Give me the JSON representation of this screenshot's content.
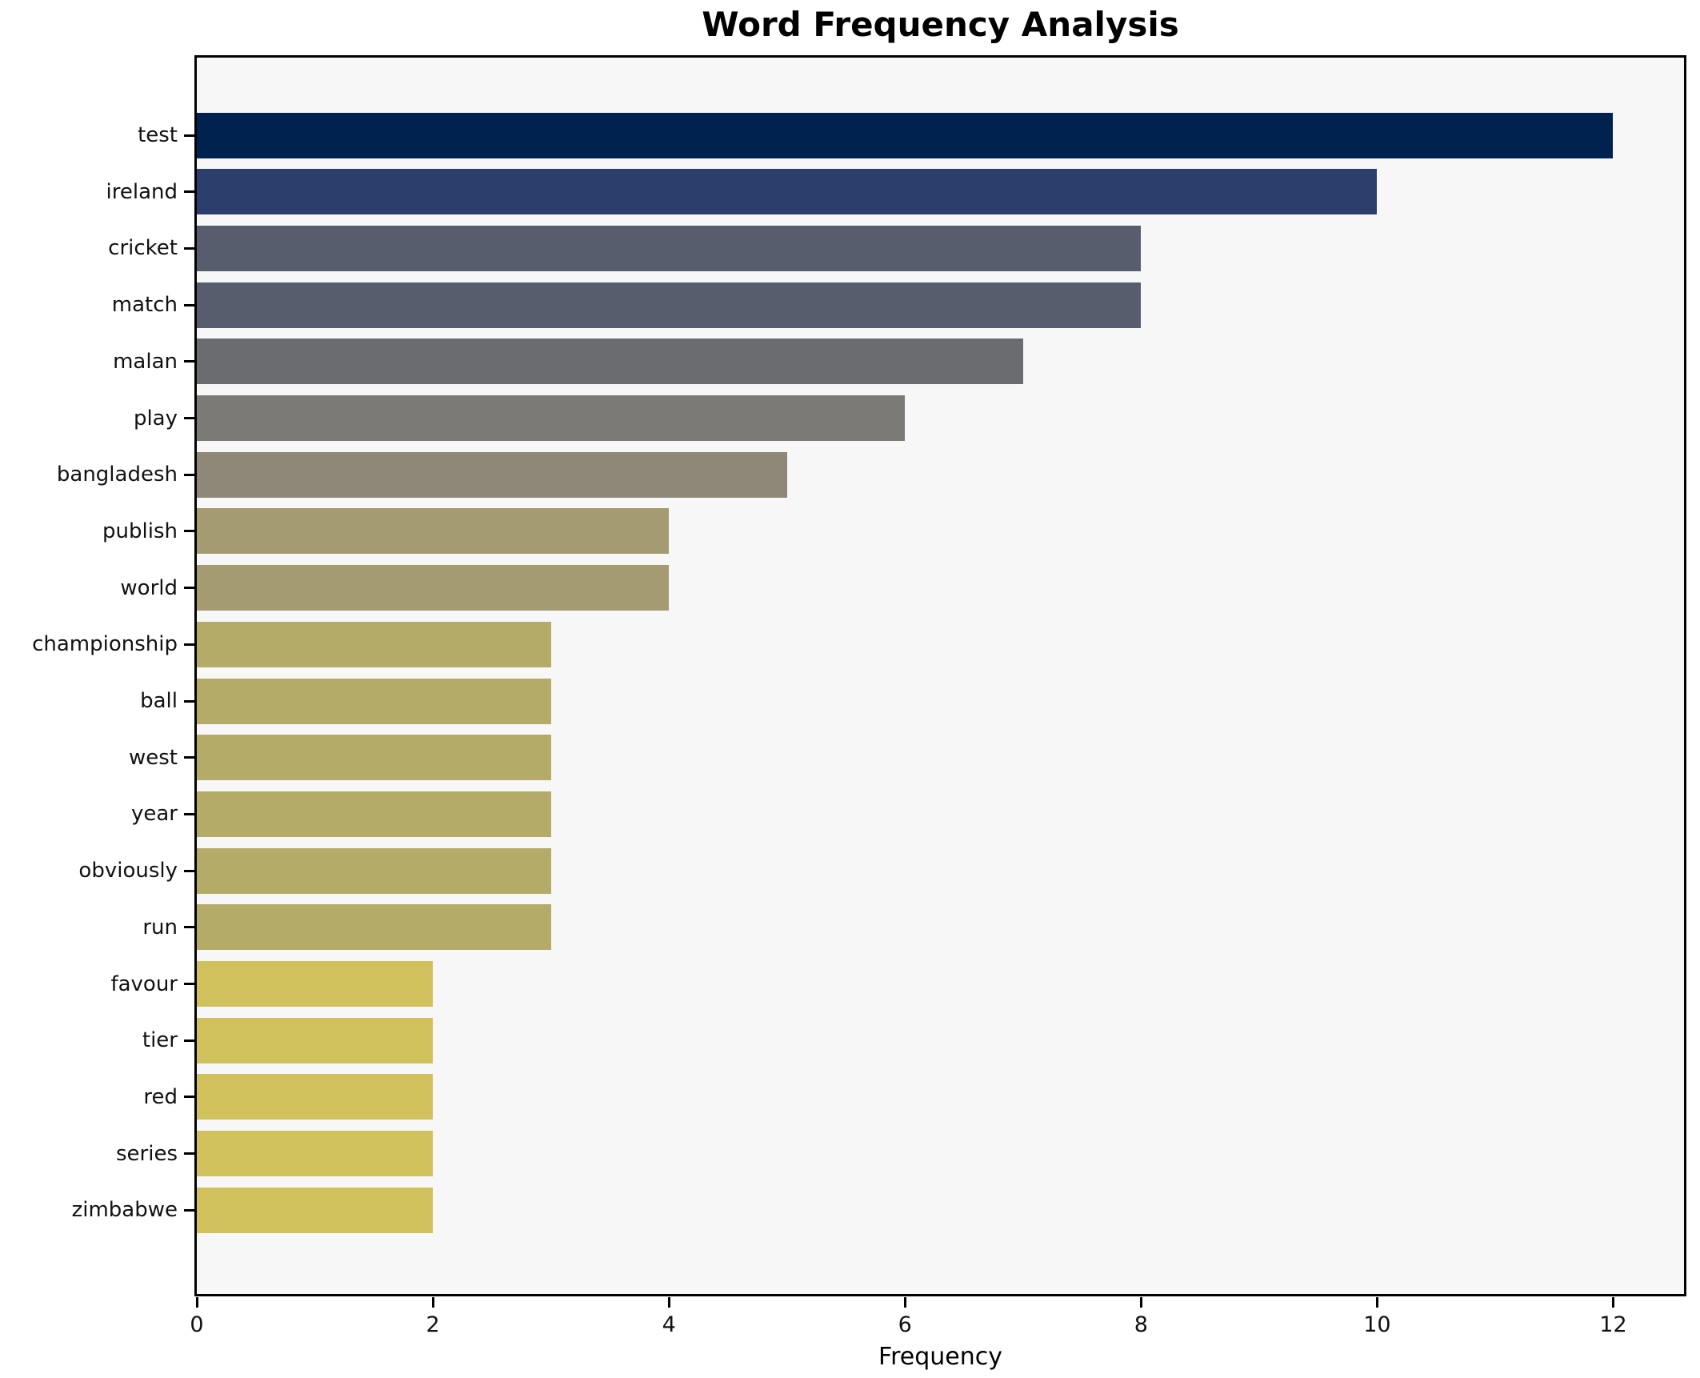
{
  "title": "Word Frequency Analysis",
  "xlabel": "Frequency",
  "chart_data": {
    "type": "bar",
    "orientation": "horizontal",
    "title": "Word Frequency Analysis",
    "xlabel": "Frequency",
    "ylabel": "",
    "categories": [
      "test",
      "ireland",
      "cricket",
      "match",
      "malan",
      "play",
      "bangladesh",
      "publish",
      "world",
      "championship",
      "ball",
      "west",
      "year",
      "obviously",
      "run",
      "favour",
      "tier",
      "red",
      "series",
      "zimbabwe"
    ],
    "values": [
      12,
      10,
      8,
      8,
      7,
      6,
      5,
      4,
      4,
      3,
      3,
      3,
      3,
      3,
      3,
      2,
      2,
      2,
      2,
      2
    ],
    "bar_colors": [
      "#00224E",
      "#2C3F6C",
      "#575D6D",
      "#575D6D",
      "#6A6C70",
      "#7B7A77",
      "#8F8879",
      "#A49B73",
      "#A49B73",
      "#B5AB69",
      "#B5AB69",
      "#B5AB69",
      "#B5AB69",
      "#B5AB69",
      "#B5AB69",
      "#D0C15C",
      "#D0C15C",
      "#D0C15C",
      "#D0C15C",
      "#D0C15C"
    ],
    "xticks": [
      0,
      2,
      4,
      6,
      8,
      10,
      12
    ],
    "xlim": [
      0,
      12.6
    ],
    "grid": false,
    "legend": null,
    "plot_background": "#f7f7f7",
    "figure_background": "#ffffff",
    "spine_color": "#000000"
  }
}
